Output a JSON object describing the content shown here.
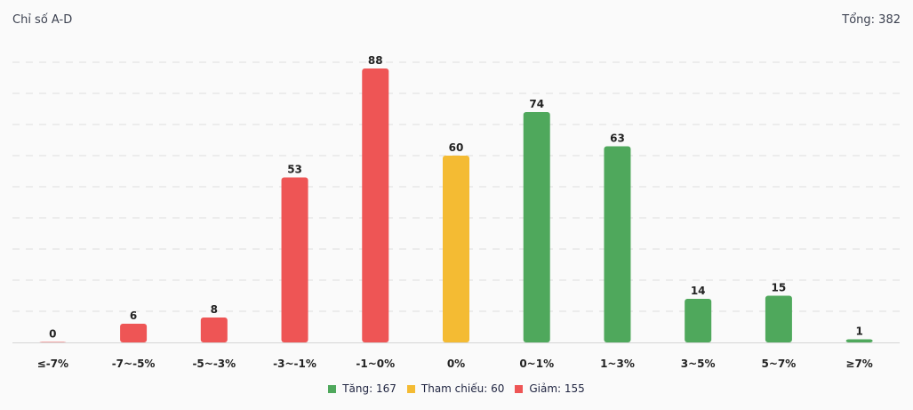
{
  "header": {
    "title": "Chỉ số A-D",
    "total": "Tổng: 382"
  },
  "colors": {
    "up": "#4fa85c",
    "ref": "#f4bb33",
    "down": "#ee5555",
    "grid": "#dedede"
  },
  "chart_data": {
    "type": "bar",
    "categories": [
      "≤-7%",
      "-7~-5%",
      "-5~-3%",
      "-3~-1%",
      "-1~0%",
      "0%",
      "0~1%",
      "1~3%",
      "3~5%",
      "5~7%",
      "≥7%"
    ],
    "values": [
      0,
      6,
      8,
      53,
      88,
      60,
      74,
      63,
      14,
      15,
      1
    ],
    "groups": [
      "down",
      "down",
      "down",
      "down",
      "down",
      "ref",
      "up",
      "up",
      "up",
      "up",
      "up"
    ],
    "ylim": [
      0,
      90
    ],
    "grid": true,
    "legend_position": "bottom",
    "legend": [
      {
        "key": "up",
        "label": "Tăng: 167"
      },
      {
        "key": "ref",
        "label": "Tham chiếu: 60"
      },
      {
        "key": "down",
        "label": "Giảm: 155"
      }
    ]
  }
}
